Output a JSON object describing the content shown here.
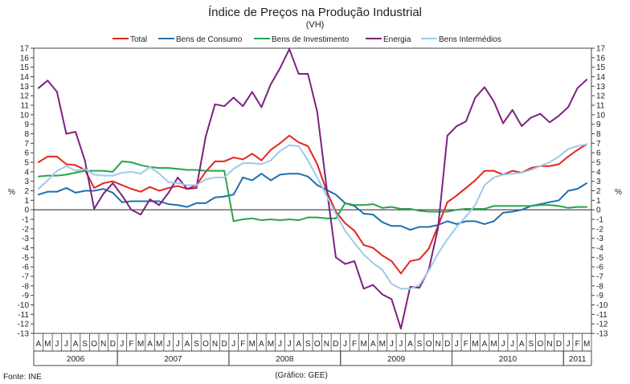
{
  "chart_data": {
    "type": "line",
    "title": "Índice de Preços na Produção Industrial",
    "subtitle": "(VH)",
    "ylabel_left": "%",
    "ylabel_right": "%",
    "ylim": [
      -13,
      17
    ],
    "yticks": [
      -13,
      -12,
      -11,
      -10,
      -9,
      -8,
      -7,
      -6,
      -5,
      -4,
      -3,
      -2,
      -1,
      0,
      1,
      2,
      3,
      4,
      5,
      6,
      7,
      8,
      9,
      10,
      11,
      12,
      13,
      14,
      15,
      16,
      17
    ],
    "months": [
      "A",
      "M",
      "J",
      "J",
      "A",
      "S",
      "O",
      "N",
      "D",
      "J",
      "F",
      "M",
      "A",
      "M",
      "J",
      "J",
      "A",
      "S",
      "O",
      "N",
      "D",
      "J",
      "F",
      "M",
      "A",
      "M",
      "J",
      "J",
      "A",
      "S",
      "O",
      "N",
      "D",
      "J",
      "F",
      "M",
      "A",
      "M",
      "J",
      "J",
      "A",
      "S",
      "O",
      "N",
      "D",
      "J",
      "F",
      "M",
      "A",
      "M",
      "J",
      "J",
      "A",
      "S",
      "O",
      "N",
      "D",
      "J",
      "F",
      "M"
    ],
    "years": [
      {
        "label": "2006",
        "start": 0,
        "end": 8
      },
      {
        "label": "2007",
        "start": 9,
        "end": 20
      },
      {
        "label": "2008",
        "start": 21,
        "end": 32
      },
      {
        "label": "2009",
        "start": 33,
        "end": 44
      },
      {
        "label": "2010",
        "start": 45,
        "end": 56
      },
      {
        "label": "2011",
        "start": 57,
        "end": 59
      }
    ],
    "series": [
      {
        "name": "Total",
        "color": "#e3261f",
        "values": [
          5.0,
          5.6,
          5.6,
          4.8,
          4.7,
          4.2,
          2.3,
          2.8,
          3.0,
          2.6,
          2.2,
          1.9,
          2.4,
          2.0,
          2.3,
          2.5,
          2.2,
          2.6,
          4.0,
          5.1,
          5.1,
          5.5,
          5.3,
          5.9,
          5.2,
          6.3,
          7.0,
          7.8,
          7.1,
          6.7,
          4.8,
          2.0,
          -0.2,
          -1.4,
          -2.2,
          -3.7,
          -4.0,
          -4.8,
          -5.4,
          -6.7,
          -5.4,
          -5.2,
          -4.1,
          -1.7,
          0.8,
          1.5,
          2.3,
          3.1,
          4.1,
          4.1,
          3.7,
          4.1,
          3.9,
          4.4,
          4.6,
          4.6,
          4.8,
          5.6,
          6.3,
          6.9
        ]
      },
      {
        "name": "Bens de Consumo",
        "color": "#1f6faf",
        "values": [
          1.6,
          1.9,
          1.9,
          2.3,
          1.8,
          2.0,
          2.0,
          2.2,
          1.8,
          0.8,
          0.9,
          0.9,
          0.9,
          0.9,
          0.6,
          0.5,
          0.3,
          0.7,
          0.7,
          1.3,
          1.4,
          1.6,
          3.4,
          3.1,
          3.8,
          3.1,
          3.7,
          3.8,
          3.8,
          3.5,
          2.6,
          2.1,
          1.6,
          0.7,
          0.4,
          -0.4,
          -0.5,
          -1.3,
          -1.7,
          -1.7,
          -2.1,
          -1.8,
          -1.8,
          -1.6,
          -1.2,
          -1.5,
          -1.2,
          -1.2,
          -1.5,
          -1.2,
          -0.3,
          -0.2,
          0.0,
          0.4,
          0.6,
          0.8,
          1.0,
          2.0,
          2.2,
          2.8
        ]
      },
      {
        "name": "Bens de Investimento",
        "color": "#27a44a",
        "values": [
          3.5,
          3.6,
          3.6,
          3.7,
          3.9,
          4.1,
          4.1,
          4.1,
          4.0,
          5.1,
          5.0,
          4.7,
          4.5,
          4.4,
          4.4,
          4.3,
          4.2,
          4.2,
          4.1,
          4.1,
          4.1,
          -1.2,
          -1.0,
          -0.9,
          -1.1,
          -1.0,
          -1.1,
          -1.0,
          -1.1,
          -0.8,
          -0.8,
          -0.9,
          -0.9,
          0.7,
          0.5,
          0.5,
          0.6,
          0.2,
          0.3,
          0.1,
          0.1,
          -0.1,
          -0.2,
          -0.2,
          -0.2,
          0.0,
          0.1,
          0.1,
          0.1,
          0.4,
          0.4,
          0.4,
          0.4,
          0.4,
          0.5,
          0.5,
          0.4,
          0.2,
          0.3,
          0.3
        ]
      },
      {
        "name": "Energia",
        "color": "#7b2280",
        "values": [
          12.8,
          13.6,
          12.4,
          8.0,
          8.2,
          5.2,
          0.1,
          1.7,
          2.8,
          1.5,
          0.0,
          -0.5,
          1.1,
          0.5,
          1.8,
          3.4,
          2.2,
          2.3,
          7.7,
          11.1,
          10.9,
          11.8,
          10.9,
          12.4,
          10.8,
          13.2,
          14.9,
          16.9,
          14.3,
          14.3,
          10.3,
          2.4,
          -5.0,
          -5.7,
          -5.4,
          -8.3,
          -7.9,
          -8.9,
          -9.4,
          -12.5,
          -8.1,
          -8.2,
          -6.3,
          -1.9,
          7.8,
          8.8,
          9.3,
          11.8,
          12.9,
          11.4,
          9.1,
          10.5,
          8.8,
          9.7,
          10.1,
          9.2,
          9.9,
          10.8,
          12.8,
          13.7
        ]
      },
      {
        "name": "Bens Intermédios",
        "color": "#9ec9e9",
        "values": [
          2.2,
          3.1,
          4.1,
          4.6,
          4.1,
          4.3,
          3.7,
          3.6,
          3.6,
          3.9,
          4.0,
          3.8,
          4.5,
          3.8,
          2.9,
          2.8,
          2.6,
          2.6,
          3.2,
          3.4,
          3.4,
          4.3,
          4.9,
          4.9,
          4.8,
          5.2,
          6.2,
          6.8,
          6.7,
          5.2,
          3.4,
          1.5,
          -0.4,
          -2.2,
          -3.5,
          -4.7,
          -5.6,
          -6.3,
          -7.8,
          -8.3,
          -8.3,
          -7.9,
          -6.4,
          -4.6,
          -3.1,
          -1.8,
          -0.7,
          0.5,
          2.6,
          3.4,
          3.7,
          3.8,
          3.9,
          4.2,
          4.6,
          5.0,
          5.6,
          6.4,
          6.7,
          6.9
        ]
      }
    ],
    "legend_position": "top"
  },
  "footer": {
    "source": "Fonte: INE",
    "credit": "(Gráfico: GEE)"
  }
}
